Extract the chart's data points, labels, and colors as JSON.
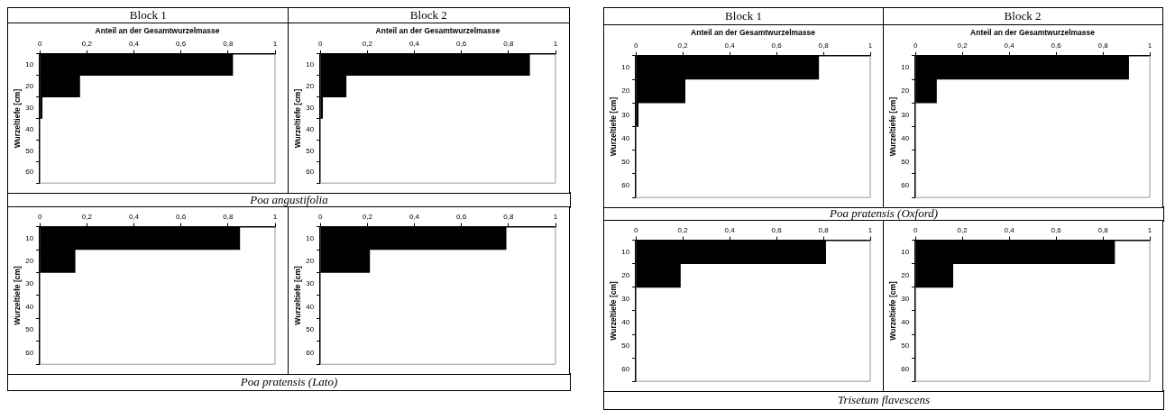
{
  "chart_data": [
    {
      "type": "bar",
      "orientation": "horizontal",
      "title": "Block 1",
      "xlabel": "Anteil an der Gesamtwurzelmasse",
      "ylabel": "Wurzeltiefe [cm]",
      "annotations": [
        "Poa angustifolia"
      ],
      "categories": [
        "10",
        "20",
        "30",
        "40",
        "50",
        "60"
      ],
      "values": [
        0.82,
        0.17,
        0.01,
        null,
        null,
        null
      ],
      "color": "#000000",
      "xlim": [
        0,
        1
      ],
      "xticks": [
        {
          "value": 0,
          "label": "0"
        },
        {
          "value": 0.2,
          "label": "0,2"
        },
        {
          "value": 0.4,
          "label": "0,4"
        },
        {
          "value": 0.6,
          "label": "0,6"
        },
        {
          "value": 0.8,
          "label": "0,8"
        },
        {
          "value": 1,
          "label": "1"
        }
      ],
      "legend": false,
      "grid": false
    },
    {
      "type": "bar",
      "orientation": "horizontal",
      "title": "Block 2",
      "xlabel": "Anteil an der Gesamtwurzelmasse",
      "ylabel": "Wurzeltiefe [cm]",
      "categories": [
        "10",
        "20",
        "30",
        "40",
        "50",
        "60"
      ],
      "values": [
        0.89,
        0.11,
        0.01,
        null,
        null,
        null
      ],
      "color": "#000000",
      "xlim": [
        0,
        1
      ],
      "xticks": [
        {
          "value": 0,
          "label": "0"
        },
        {
          "value": 0.2,
          "label": "0,2"
        },
        {
          "value": 0.4,
          "label": "0,4"
        },
        {
          "value": 0.6,
          "label": "0,6"
        },
        {
          "value": 0.8,
          "label": "0,8"
        },
        {
          "value": 1,
          "label": "1"
        }
      ],
      "legend": false,
      "grid": false
    },
    {
      "type": "bar",
      "orientation": "horizontal",
      "ylabel": "Wurzeltiefe [cm]",
      "annotations": [
        "Poa pratensis (Lato)"
      ],
      "categories": [
        "10",
        "20",
        "30",
        "40",
        "50",
        "60"
      ],
      "values": [
        0.85,
        0.15,
        null,
        null,
        null,
        null
      ],
      "color": "#000000",
      "xlim": [
        0,
        1
      ],
      "xticks": [
        {
          "value": 0,
          "label": "0"
        },
        {
          "value": 0.2,
          "label": "0,2"
        },
        {
          "value": 0.4,
          "label": "0,4"
        },
        {
          "value": 0.6,
          "label": "0,6"
        },
        {
          "value": 0.8,
          "label": "0,8"
        },
        {
          "value": 1,
          "label": "1"
        }
      ],
      "legend": false,
      "grid": false
    },
    {
      "type": "bar",
      "orientation": "horizontal",
      "ylabel": "Wurzeltiefe [cm]",
      "categories": [
        "10",
        "20",
        "30",
        "40",
        "50",
        "60"
      ],
      "values": [
        0.79,
        0.21,
        null,
        null,
        null,
        null
      ],
      "color": "#000000",
      "xlim": [
        0,
        1
      ],
      "xticks": [
        {
          "value": 0,
          "label": "0"
        },
        {
          "value": 0.2,
          "label": "0,2"
        },
        {
          "value": 0.4,
          "label": "0,4"
        },
        {
          "value": 0.6,
          "label": "0,6"
        },
        {
          "value": 0.8,
          "label": "0,8"
        },
        {
          "value": 1,
          "label": "1"
        }
      ],
      "legend": false,
      "grid": false
    },
    {
      "type": "bar",
      "orientation": "horizontal",
      "title": "Block 1",
      "xlabel": "Anteil an der Gesamtwurzelmasse",
      "ylabel": "Wurzeltiefe [cm]",
      "annotations": [
        "Poa pratensis (Oxford)"
      ],
      "categories": [
        "10",
        "20",
        "30",
        "40",
        "50",
        "60"
      ],
      "values": [
        0.78,
        0.21,
        0.01,
        null,
        null,
        null
      ],
      "color": "#000000",
      "xlim": [
        0,
        1
      ],
      "xticks": [
        {
          "value": 0,
          "label": "0"
        },
        {
          "value": 0.2,
          "label": "0,2"
        },
        {
          "value": 0.4,
          "label": "0,4"
        },
        {
          "value": 0.6,
          "label": "0,6"
        },
        {
          "value": 0.8,
          "label": "0,8"
        },
        {
          "value": 1,
          "label": "1"
        }
      ],
      "legend": false,
      "grid": false
    },
    {
      "type": "bar",
      "orientation": "horizontal",
      "title": "Block 2",
      "xlabel": "Anteil an der Gesamtwurzelmasse",
      "ylabel": "Wurzeltiefe [cm]",
      "categories": [
        "10",
        "20",
        "30",
        "40",
        "50",
        "60"
      ],
      "values": [
        0.91,
        0.09,
        null,
        null,
        null,
        null
      ],
      "color": "#000000",
      "xlim": [
        0,
        1
      ],
      "xticks": [
        {
          "value": 0,
          "label": "0"
        },
        {
          "value": 0.2,
          "label": "0,2"
        },
        {
          "value": 0.4,
          "label": "0,4"
        },
        {
          "value": 0.6,
          "label": "0,6"
        },
        {
          "value": 0.8,
          "label": "0,8"
        },
        {
          "value": 1,
          "label": "1"
        }
      ],
      "legend": false,
      "grid": false
    },
    {
      "type": "bar",
      "orientation": "horizontal",
      "ylabel": "Wurzeltiefe [cm]",
      "annotations": [
        "Trisetum flavescens"
      ],
      "categories": [
        "10",
        "20",
        "30",
        "40",
        "50",
        "60"
      ],
      "values": [
        0.81,
        0.19,
        null,
        null,
        null,
        null
      ],
      "color": "#000000",
      "xlim": [
        0,
        1
      ],
      "xticks": [
        {
          "value": 0,
          "label": "0"
        },
        {
          "value": 0.2,
          "label": "0,2"
        },
        {
          "value": 0.4,
          "label": "0,4"
        },
        {
          "value": 0.6,
          "label": "0,6"
        },
        {
          "value": 0.8,
          "label": "0,8"
        },
        {
          "value": 1,
          "label": "1"
        }
      ],
      "legend": false,
      "grid": false
    },
    {
      "type": "bar",
      "orientation": "horizontal",
      "ylabel": "Wurzeltiefe [cm]",
      "categories": [
        "10",
        "20",
        "30",
        "40",
        "50",
        "60"
      ],
      "values": [
        0.85,
        0.16,
        null,
        null,
        null,
        null
      ],
      "color": "#000000",
      "xlim": [
        0,
        1
      ],
      "xticks": [
        {
          "value": 0,
          "label": "0"
        },
        {
          "value": 0.2,
          "label": "0,2"
        },
        {
          "value": 0.4,
          "label": "0,4"
        },
        {
          "value": 0.6,
          "label": "0,6"
        },
        {
          "value": 0.8,
          "label": "0,8"
        },
        {
          "value": 1,
          "label": "1"
        }
      ],
      "legend": false,
      "grid": false
    }
  ]
}
